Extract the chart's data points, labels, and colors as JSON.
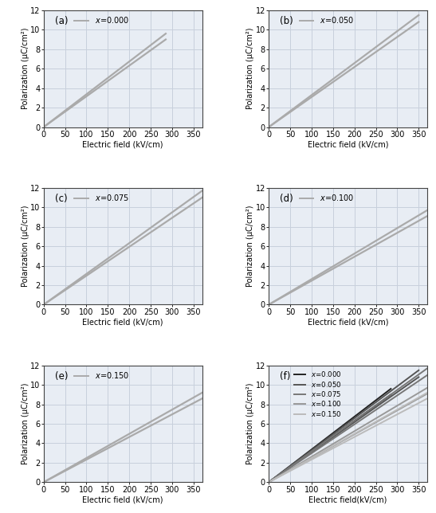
{
  "panels": [
    {
      "label": "(a)",
      "x_val": "0.000",
      "slope_up": 0.03368,
      "slope_dn": 0.03158,
      "x_max": 285
    },
    {
      "label": "(b)",
      "x_val": "0.050",
      "slope_up": 0.03286,
      "slope_dn": 0.03086,
      "x_max": 350
    },
    {
      "label": "(c)",
      "x_val": "0.075",
      "slope_up": 0.03162,
      "slope_dn": 0.02973,
      "x_max": 370
    },
    {
      "label": "(d)",
      "x_val": "0.100",
      "slope_up": 0.02622,
      "slope_dn": 0.0246,
      "x_max": 370
    },
    {
      "label": "(e)",
      "x_val": "0.150",
      "slope_up": 0.02486,
      "slope_dn": 0.02324,
      "x_max": 370
    }
  ],
  "panel_f_label": "(f)",
  "panel_f_colors": [
    "#222222",
    "#555555",
    "#777777",
    "#999999",
    "#bbbbbb"
  ],
  "panel_f_x_vals": [
    "0.000",
    "0.050",
    "0.075",
    "0.100",
    "0.150"
  ],
  "panel_f_slopes_up": [
    0.03368,
    0.03286,
    0.03162,
    0.02622,
    0.02486
  ],
  "panel_f_slopes_dn": [
    0.03158,
    0.03086,
    0.02973,
    0.0246,
    0.02324
  ],
  "panel_f_xmax": [
    285,
    350,
    370,
    370,
    370
  ],
  "ylim": [
    0,
    12
  ],
  "xlim": [
    0,
    370
  ],
  "xticks": [
    0,
    50,
    100,
    150,
    200,
    250,
    300,
    350
  ],
  "yticks": [
    0,
    2,
    4,
    6,
    8,
    10,
    12
  ],
  "xlabel": "Electric field (kV/cm)",
  "ylabel": "Polarization (μC/cm²)",
  "xlabel_f": "Electric field(kV/cm)",
  "ylabel_f": "Polarization (μC/cm²)",
  "grid_color": "#c8d0dc",
  "bg_color": "#e8edf4",
  "line_color": "#aaaaaa",
  "font_size": 7.0,
  "label_font_size": 8.5
}
